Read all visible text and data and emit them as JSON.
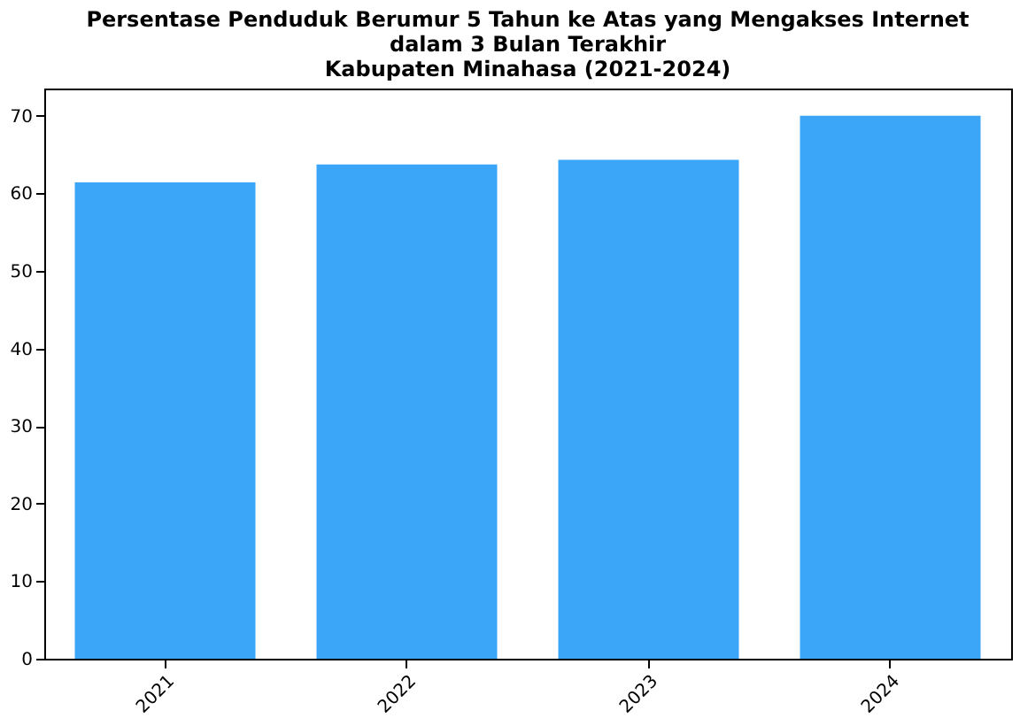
{
  "chart_data": {
    "type": "bar",
    "title": [
      "Persentase Penduduk Berumur 5 Tahun ke Atas yang Mengakses Internet",
      "dalam 3 Bulan Terakhir",
      "Kabupaten Minahasa (2021-2024)"
    ],
    "categories": [
      "2021",
      "2022",
      "2023",
      "2024"
    ],
    "values": [
      61.4,
      63.7,
      64.3,
      70.0
    ],
    "color": "#3ba6f7",
    "ylim": [
      0,
      73.5
    ],
    "yticks": [
      0,
      10,
      20,
      30,
      40,
      50,
      60,
      70
    ],
    "grid": false
  }
}
